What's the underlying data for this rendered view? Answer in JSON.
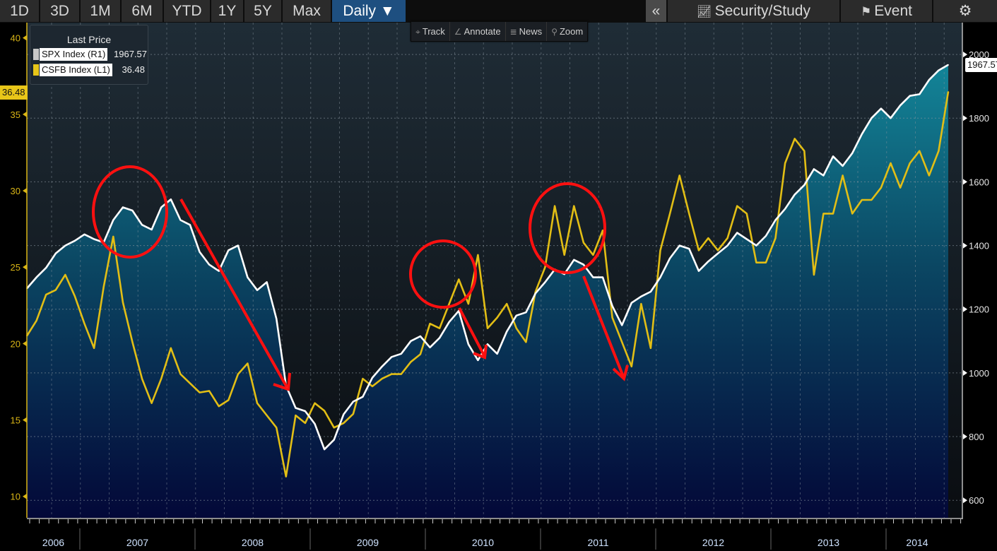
{
  "toolbar": {
    "ranges": [
      "1D",
      "3D",
      "1M",
      "6M",
      "YTD",
      "1Y",
      "5Y",
      "Max"
    ],
    "frequency": "Daily ▼",
    "collapse": "«",
    "security_study": "Security/Study",
    "event": "Event",
    "settings_icon": "gear-icon"
  },
  "chart_tools": {
    "track": "Track",
    "annotate": "Annotate",
    "news": "News",
    "zoom": "Zoom"
  },
  "legend": {
    "title": "Last Price",
    "items": [
      {
        "name": "SPX Index  (R1)",
        "value": "1967.57",
        "color": "#c8c8c8"
      },
      {
        "name": "CSFB Index  (L1)",
        "value": "36.48",
        "color": "#e8c619"
      }
    ]
  },
  "colors": {
    "spx": "#ffffff",
    "csfb": "#e2be15",
    "annotation": "#ff1010"
  },
  "chart_data": {
    "type": "line",
    "title": "",
    "x_start": "2006-07",
    "frequency": "monthly",
    "xlabels": [
      "2006",
      "2007",
      "2008",
      "2009",
      "2010",
      "2011",
      "2012",
      "2013",
      "2014"
    ],
    "left_axis": {
      "series": "CSFB Index (L1)",
      "ticks": [
        10,
        15,
        20,
        25,
        30,
        35,
        40
      ],
      "ylim": [
        8.6,
        41
      ],
      "last": "36.48"
    },
    "right_axis": {
      "series": "SPX Index (R1)",
      "ticks": [
        600,
        800,
        1000,
        1200,
        1400,
        1600,
        1800,
        2000
      ],
      "ylim": [
        545,
        2100
      ],
      "last": "1967.57"
    },
    "grid": true,
    "legend_position": "top-left",
    "series": [
      {
        "name": "SPX Index",
        "axis": "right",
        "type": "area",
        "values": [
          1265,
          1300,
          1330,
          1375,
          1400,
          1415,
          1435,
          1420,
          1410,
          1480,
          1520,
          1510,
          1465,
          1450,
          1520,
          1545,
          1480,
          1465,
          1380,
          1340,
          1320,
          1385,
          1400,
          1300,
          1260,
          1285,
          1170,
          960,
          890,
          880,
          840,
          760,
          790,
          870,
          910,
          925,
          985,
          1020,
          1050,
          1060,
          1100,
          1115,
          1080,
          1110,
          1160,
          1195,
          1090,
          1040,
          1090,
          1060,
          1130,
          1180,
          1190,
          1250,
          1285,
          1325,
          1310,
          1355,
          1340,
          1300,
          1300,
          1210,
          1150,
          1220,
          1240,
          1255,
          1300,
          1360,
          1400,
          1390,
          1320,
          1350,
          1375,
          1400,
          1440,
          1420,
          1400,
          1430,
          1480,
          1515,
          1560,
          1590,
          1640,
          1620,
          1680,
          1650,
          1690,
          1750,
          1800,
          1830,
          1800,
          1840,
          1870,
          1875,
          1920,
          1950,
          1967.57
        ]
      },
      {
        "name": "CSFB Index",
        "axis": "left",
        "type": "line",
        "values": [
          20.5,
          21.5,
          23.2,
          23.5,
          24.5,
          23.1,
          21.3,
          19.7,
          23.7,
          27,
          22.7,
          20.1,
          17.7,
          16.1,
          17.7,
          19.7,
          18,
          17.4,
          16.8,
          16.9,
          15.9,
          16.3,
          18,
          18.7,
          16.1,
          15.3,
          14.5,
          11.3,
          15.3,
          14.8,
          16.1,
          15.6,
          14.5,
          14.8,
          15.4,
          17.7,
          17.2,
          17.7,
          18,
          18,
          18.8,
          19.3,
          21.3,
          21,
          22.6,
          24.2,
          22.6,
          25.8,
          21,
          21.7,
          22.6,
          21,
          20.1,
          23.4,
          25,
          29,
          25.8,
          29,
          26.6,
          25.8,
          27.4,
          21.7,
          20.1,
          18.5,
          22.6,
          19.7,
          26.1,
          28.5,
          31,
          28.5,
          26.1,
          26.9,
          26.1,
          26.9,
          29,
          28.5,
          25.3,
          25.3,
          26.9,
          31.8,
          33.4,
          32.6,
          24.5,
          28.5,
          28.5,
          31,
          28.5,
          29.4,
          29.4,
          30.2,
          31.8,
          30.2,
          31.8,
          32.6,
          31,
          32.6,
          36.48
        ]
      }
    ]
  }
}
